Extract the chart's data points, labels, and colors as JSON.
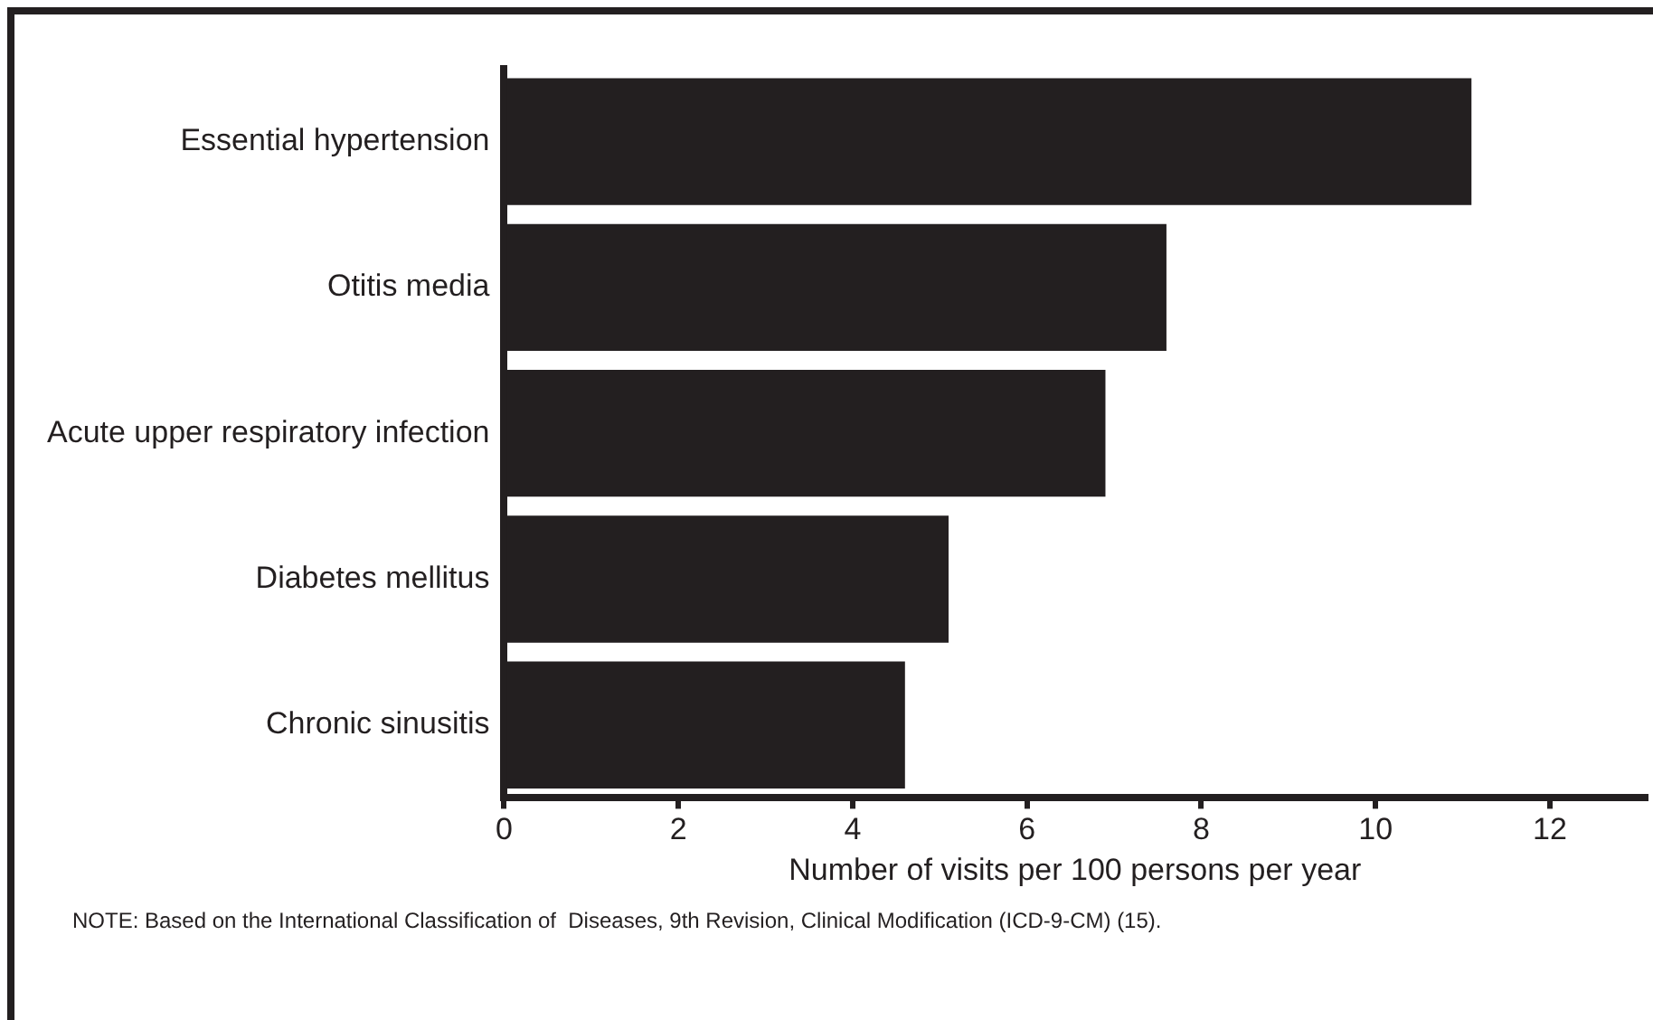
{
  "chart_data": {
    "type": "bar",
    "orientation": "horizontal",
    "categories": [
      "Essential hypertension",
      "Otitis media",
      "Acute upper respiratory infection",
      "Diabetes mellitus",
      "Chronic sinusitis"
    ],
    "values": [
      11.1,
      7.6,
      6.9,
      5.1,
      4.6
    ],
    "color": "#231f20",
    "xlabel": "Number of visits per 100 persons per year",
    "xlim": [
      0,
      13.1
    ],
    "xticks": [
      0,
      2,
      4,
      6,
      8,
      10,
      12
    ],
    "grid": false,
    "legend": false,
    "annotations": [
      "NOTE: Based on the International Classification of  Diseases, 9th Revision, Clinical Modification (ICD-9-CM) (15)."
    ]
  }
}
